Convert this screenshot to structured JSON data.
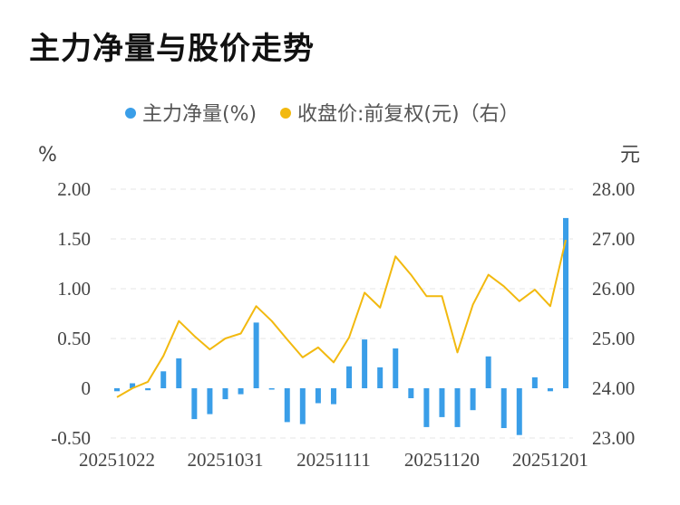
{
  "title": "主力净量与股价走势",
  "chart_data": {
    "type": "bar+line",
    "left_unit": "%",
    "right_unit": "元",
    "legend": [
      {
        "label": "主力净量(%)",
        "color": "#3a9ee8"
      },
      {
        "label": "收盘价:前复权(元)（右）",
        "color": "#f2b90f"
      }
    ],
    "y_left": {
      "min": -0.5,
      "max": 2.0,
      "ticks": [
        "2.00",
        "1.50",
        "1.00",
        "0.50",
        "0",
        "-0.50"
      ]
    },
    "y_right": {
      "min": 23.0,
      "max": 28.0,
      "ticks": [
        "28.00",
        "27.00",
        "26.00",
        "25.00",
        "24.00",
        "23.00"
      ]
    },
    "x_tick_labels": [
      "20251022",
      "20251031",
      "20251111",
      "20251120",
      "20251201"
    ],
    "x_tick_index": [
      0,
      7,
      14,
      21,
      28
    ],
    "series": [
      {
        "name": "主力净量(%)",
        "kind": "bar",
        "values": [
          -0.03,
          0.05,
          -0.02,
          0.17,
          0.3,
          -0.31,
          -0.26,
          -0.11,
          -0.06,
          0.66,
          -0.01,
          -0.34,
          -0.36,
          -0.15,
          -0.16,
          0.22,
          0.49,
          0.21,
          0.4,
          -0.1,
          -0.39,
          -0.29,
          -0.39,
          -0.22,
          0.32,
          -0.4,
          -0.47,
          0.11,
          -0.03,
          1.71
        ]
      },
      {
        "name": "收盘价:前复权(元)（右）",
        "kind": "line",
        "values": [
          23.82,
          24.0,
          24.13,
          24.65,
          25.35,
          25.05,
          24.78,
          25.0,
          25.1,
          25.65,
          25.35,
          24.98,
          24.62,
          24.82,
          24.52,
          25.02,
          25.92,
          25.62,
          26.65,
          26.28,
          25.85,
          25.85,
          24.72,
          25.68,
          26.28,
          26.05,
          25.75,
          25.98,
          25.65,
          26.98
        ]
      }
    ],
    "grid": "horizontal-dashed"
  }
}
